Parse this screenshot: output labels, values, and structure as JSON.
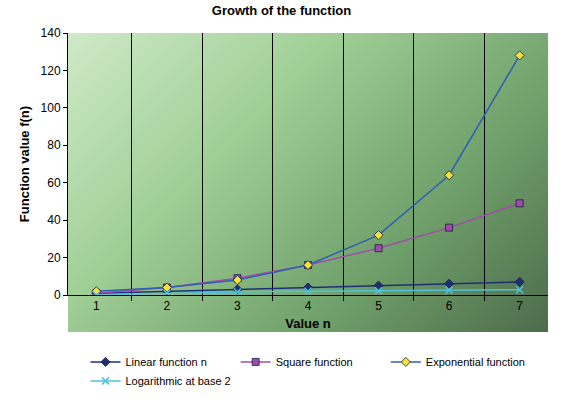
{
  "chart_data": {
    "type": "line",
    "title": "Growth of the function",
    "x_label": "Value n",
    "y_label": "Function value f(n)",
    "categories": [
      "1",
      "2",
      "3",
      "4",
      "5",
      "6",
      "7"
    ],
    "series": [
      {
        "name": "Linear function n",
        "color": "#1f2f75",
        "marker": "diamond",
        "values": [
          1,
          2,
          3,
          4,
          5,
          6,
          7
        ]
      },
      {
        "name": "Square function",
        "color": "#a04ca8",
        "marker": "square",
        "values": [
          1,
          4,
          9,
          16,
          25,
          36,
          49
        ]
      },
      {
        "name": "Exponential function",
        "color": "#2f5fb0",
        "marker": "diamond",
        "values": [
          2,
          4,
          8,
          16,
          32,
          64,
          128
        ]
      },
      {
        "name": "Logarithmic at base 2",
        "color": "#4fc3d9",
        "marker": "x",
        "values": [
          0,
          1,
          1.6,
          2,
          2.3,
          2.6,
          2.8
        ]
      }
    ],
    "ylim": [
      0,
      140
    ],
    "yticks": [
      0,
      20,
      40,
      60,
      80,
      100,
      120,
      140
    ],
    "grid": "x",
    "legend": "bottom"
  }
}
